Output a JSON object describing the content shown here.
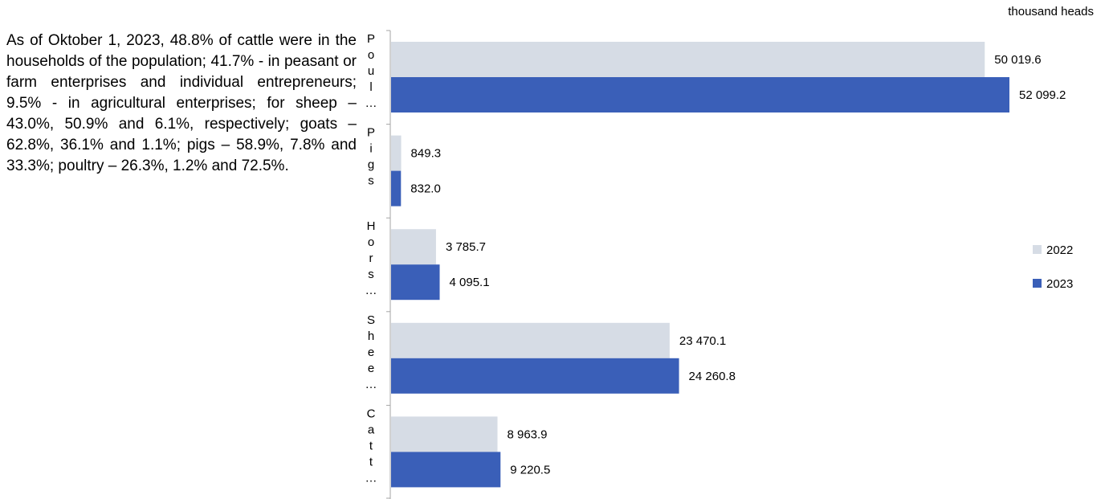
{
  "text_block": "As of Oktober 1, 2023, 48.8% of cattle were in the households of the population; 41.7% - in peasant or farm enterprises and individual entrepreneurs; 9.5% - in agricultural enterprises; for sheep – 43.0%, 50.9% and 6.1%, respectively; goats – 62.8%, 36.1% and 1.1%; pigs – 58.9%, 7.8% and 33.3%; poultry – 26.3%, 1.2% and 72.5%.",
  "chart_data": {
    "type": "bar",
    "orientation": "horizontal",
    "unit_label": "thousand heads",
    "categories": [
      "Poul…",
      "Pigs",
      "Hors…",
      "Shee…",
      "Catt…"
    ],
    "series": [
      {
        "name": "2022",
        "values": [
          50019.6,
          849.3,
          3785.7,
          23470.1,
          8963.9
        ],
        "labels": [
          "50 019.6",
          "849.3",
          "3 785.7",
          "23 470.1",
          "8 963.9"
        ]
      },
      {
        "name": "2023",
        "values": [
          52099.2,
          832.0,
          4095.1,
          24260.8,
          9220.5
        ],
        "labels": [
          "52 099.2",
          "832.0",
          "4 095.1",
          "24 260.8",
          "9 220.5"
        ]
      }
    ],
    "colors": {
      "2022": "#d6dce5",
      "2023": "#3a5fb8"
    },
    "legend_position": "right",
    "grid": false
  }
}
